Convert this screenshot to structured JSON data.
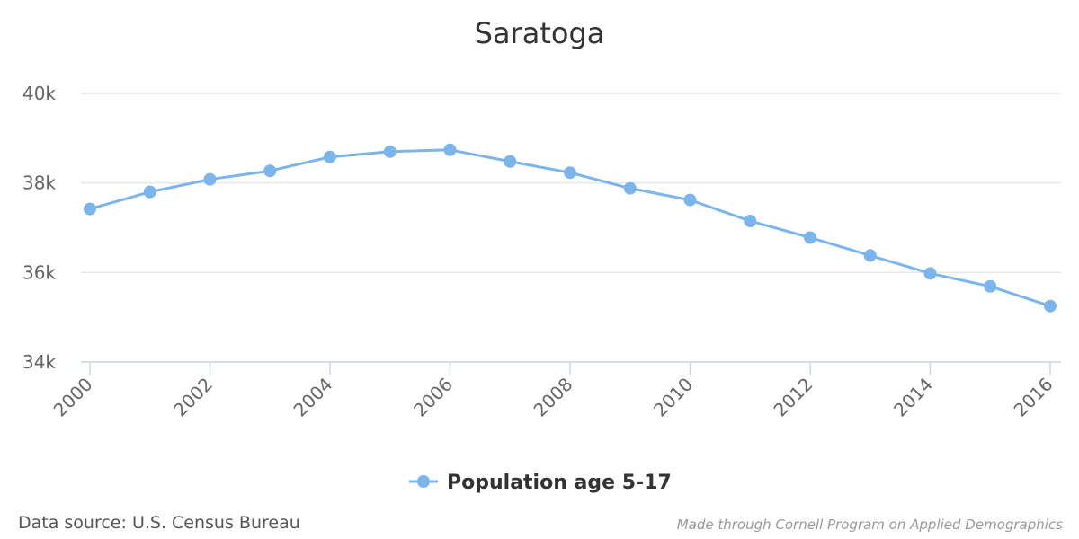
{
  "chart_data": {
    "type": "line",
    "title": "Saratoga",
    "x": [
      2000,
      2001,
      2002,
      2003,
      2004,
      2005,
      2006,
      2007,
      2008,
      2009,
      2010,
      2011,
      2012,
      2013,
      2014,
      2015,
      2016
    ],
    "x_tick_labels": [
      "2000",
      "2002",
      "2004",
      "2006",
      "2008",
      "2010",
      "2012",
      "2014",
      "2016"
    ],
    "y_tick_labels": [
      "34k",
      "36k",
      "38k",
      "40k"
    ],
    "ylim": [
      34000,
      40000
    ],
    "xlim": [
      2000,
      2016
    ],
    "grid": true,
    "legend_position": "bottom",
    "series": [
      {
        "name": "Population age 5-17",
        "color": "#7cb5ec",
        "values": [
          37420,
          37800,
          38080,
          38270,
          38580,
          38700,
          38740,
          38480,
          38230,
          37880,
          37620,
          37150,
          36780,
          36380,
          35980,
          35690,
          35250
        ]
      }
    ]
  },
  "credits": {
    "source": "Data source: U.S. Census Bureau",
    "made_by": "Made through Cornell Program on Applied Demographics"
  }
}
